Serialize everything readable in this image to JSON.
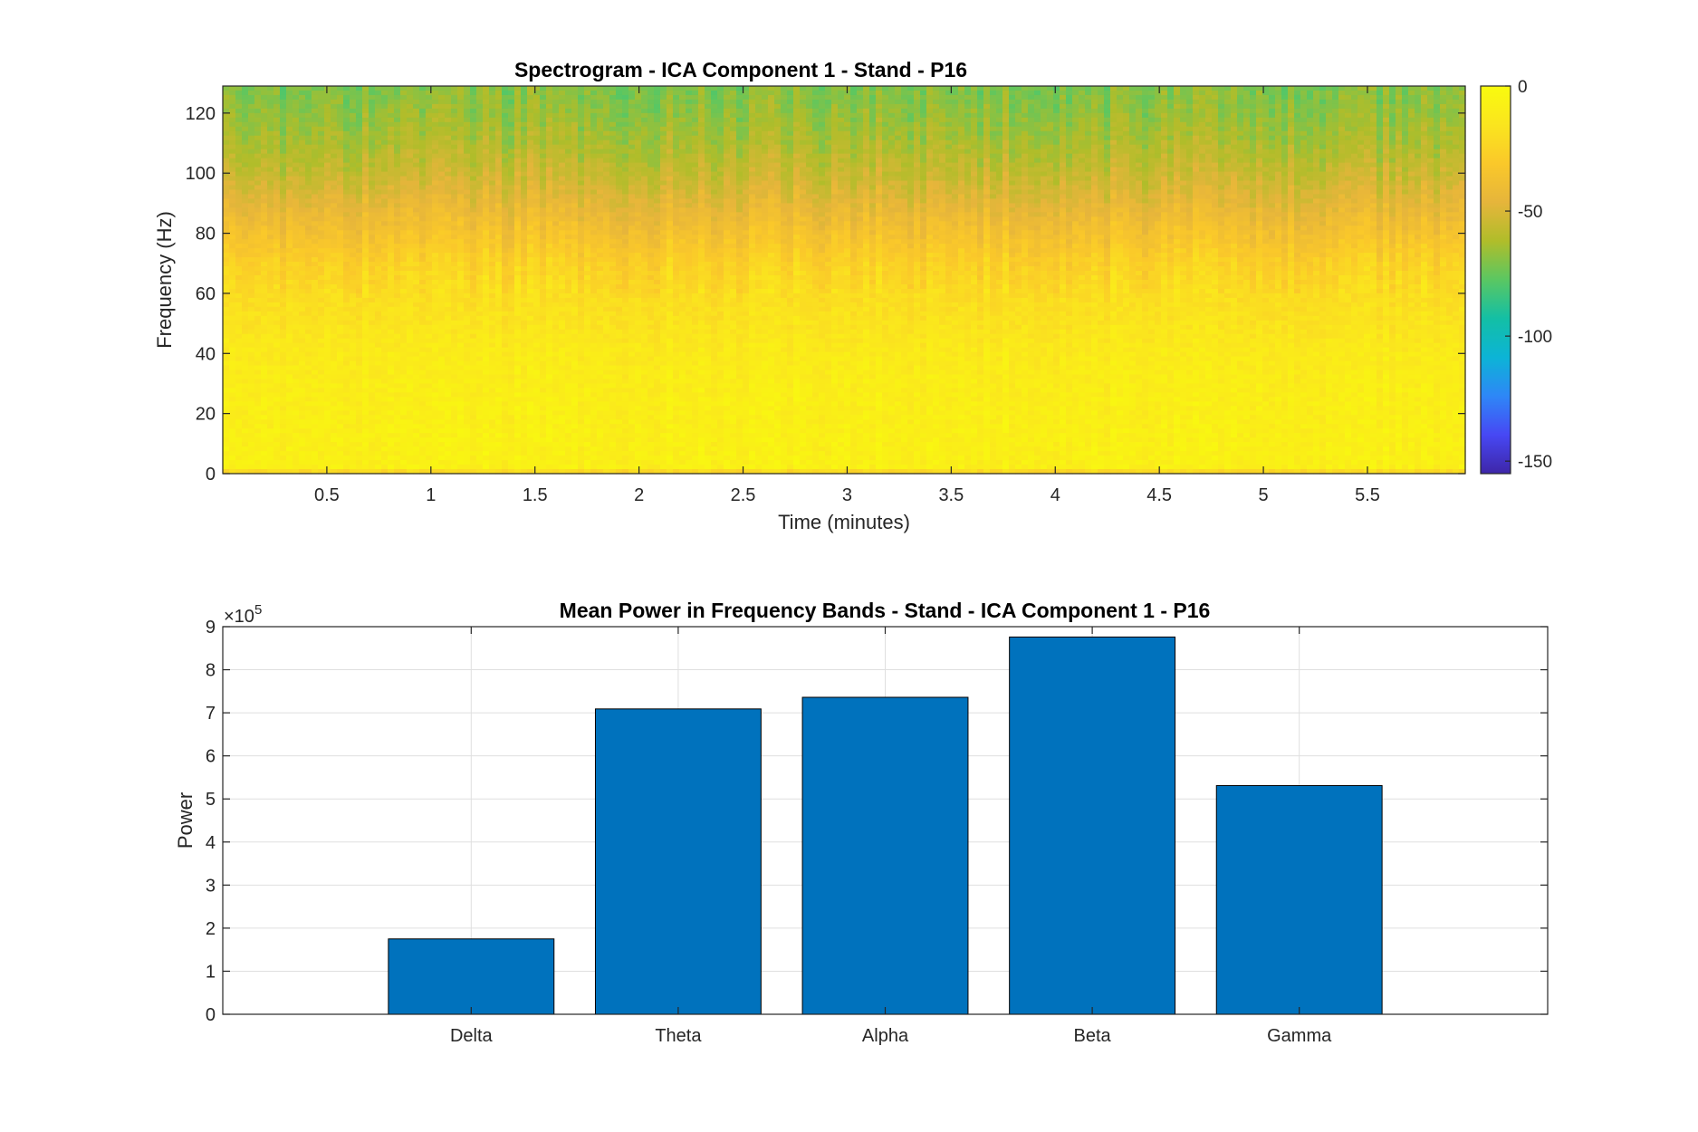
{
  "colors": {
    "bar_fill": "#0072BD",
    "axis": "#262626",
    "grid": "#dfdfdf",
    "colormap": [
      "#3e26a8",
      "#4748f4",
      "#2e87f7",
      "#0cb4d6",
      "#13bfa5",
      "#5ac762",
      "#b0bd2a",
      "#e6b53b",
      "#fac82a",
      "#fae51e",
      "#f9fb0e"
    ]
  },
  "chart_data": [
    {
      "type": "heatmap",
      "title": "Spectrogram - ICA Component 1 - Stand - P16",
      "xlabel": "Time (minutes)",
      "ylabel": "Frequency (Hz)",
      "xlim": [
        0.0,
        5.97
      ],
      "ylim": [
        0,
        129
      ],
      "x_ticks": [
        0.5,
        1,
        1.5,
        2,
        2.5,
        3,
        3.5,
        4,
        4.5,
        5,
        5.5
      ],
      "x_tick_labels": [
        "0.5",
        "1",
        "1.5",
        "2",
        "2.5",
        "3",
        "3.5",
        "4",
        "4.5",
        "5",
        "5.5"
      ],
      "y_ticks": [
        0,
        20,
        40,
        60,
        80,
        100,
        120
      ],
      "y_tick_labels": [
        "0",
        "20",
        "40",
        "60",
        "80",
        "100",
        "120"
      ],
      "colorbar": {
        "clim": [
          -155,
          0
        ],
        "ticks": [
          0,
          -50,
          -100,
          -150
        ],
        "tick_labels": [
          "0",
          "-50",
          "-100",
          "-150"
        ]
      },
      "frequency_profile": {
        "freq": [
          0,
          2,
          10,
          20,
          30,
          40,
          50,
          60,
          70,
          80,
          90,
          100,
          110,
          120,
          129
        ],
        "power": [
          -30,
          -8,
          -8,
          -9,
          -10,
          -12,
          -16,
          -20,
          -26,
          -36,
          -46,
          -55,
          -62,
          -67,
          -70
        ]
      }
    },
    {
      "type": "bar",
      "title": "Mean Power in Frequency Bands - Stand - ICA Component 1 - P16",
      "xlabel": "",
      "ylabel": "Power",
      "categories": [
        "Delta",
        "Theta",
        "Alpha",
        "Beta",
        "Gamma"
      ],
      "values": [
        175000,
        709000,
        736000,
        876000,
        531000
      ],
      "ylim": [
        0,
        900000
      ],
      "y_ticks": [
        0,
        1,
        2,
        3,
        4,
        5,
        6,
        7,
        8,
        9
      ],
      "y_tick_labels": [
        "0",
        "1",
        "2",
        "3",
        "4",
        "5",
        "6",
        "7",
        "8",
        "9"
      ],
      "y_multiplier": "×10",
      "y_exponent": "5",
      "grid": true
    }
  ]
}
